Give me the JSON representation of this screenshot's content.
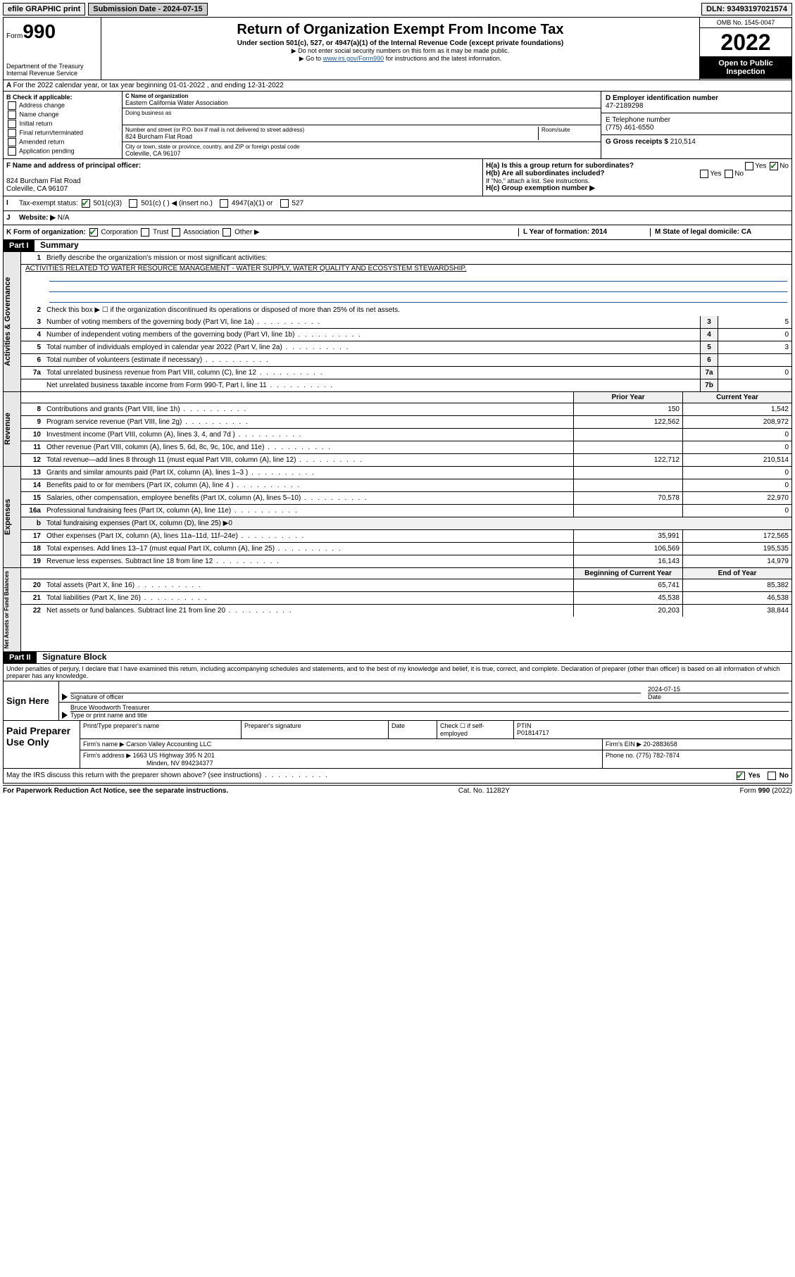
{
  "topbar": {
    "efile": "efile GRAPHIC print",
    "submission": "Submission Date - 2024-07-15",
    "dln": "DLN: 93493197021574"
  },
  "hdr": {
    "form": "Form",
    "num": "990",
    "dept": "Department of the Treasury",
    "irs": "Internal Revenue Service",
    "title": "Return of Organization Exempt From Income Tax",
    "sub1": "Under section 501(c), 527, or 4947(a)(1) of the Internal Revenue Code (except private foundations)",
    "sub2": "▶ Do not enter social security numbers on this form as it may be made public.",
    "sub3a": "▶ Go to ",
    "link": "www.irs.gov/Form990",
    "sub3b": " for instructions and the latest information.",
    "omb": "OMB No. 1545-0047",
    "year": "2022",
    "open": "Open to Public Inspection"
  },
  "A": {
    "text": "For the 2022 calendar year, or tax year beginning 01-01-2022    , and ending 12-31-2022"
  },
  "B": {
    "hdr": "B Check if applicable:",
    "items": [
      "Address change",
      "Name change",
      "Initial return",
      "Final return/terminated",
      "Amended return",
      "Application pending"
    ]
  },
  "C": {
    "lbl": "C Name of organization",
    "org": "Eastern California Water Association",
    "dba": "Doing business as",
    "addr_lbl": "Number and street (or P.O. box if mail is not delivered to street address)",
    "room": "Room/suite",
    "addr": "824 Burcham Flat Road",
    "city_lbl": "City or town, state or province, country, and ZIP or foreign postal code",
    "city": "Coleville, CA  96107"
  },
  "D": {
    "lbl": "D Employer identification number",
    "val": "47-2189298"
  },
  "E": {
    "lbl": "E Telephone number",
    "val": "(775) 461-6550"
  },
  "G": {
    "lbl": "G Gross receipts $",
    "val": "210,514"
  },
  "F": {
    "lbl": "F  Name and address of principal officer:",
    "addr1": "824 Burcham Flat Road",
    "addr2": "Coleville, CA  96107"
  },
  "H": {
    "a": "H(a)  Is this a group return for subordinates?",
    "b": "H(b)  Are all subordinates included?",
    "note": "If \"No,\" attach a list. See instructions.",
    "c": "H(c)  Group exemption number ▶",
    "yes": "Yes",
    "no": "No"
  },
  "I": {
    "lbl": "Tax-exempt status:",
    "c1": "501(c)(3)",
    "c2": "501(c) (  ) ◀ (insert no.)",
    "c3": "4947(a)(1) or",
    "c4": "527"
  },
  "J": {
    "lbl": "Website: ▶",
    "val": "N/A"
  },
  "K": {
    "lbl": "K Form of organization:",
    "c1": "Corporation",
    "c2": "Trust",
    "c3": "Association",
    "c4": "Other ▶"
  },
  "L": {
    "lbl": "L Year of formation: 2014"
  },
  "M": {
    "lbl": "M State of legal domicile: CA"
  },
  "part1": {
    "hdr": "Part I",
    "title": "Summary"
  },
  "p1": {
    "l1a": "Briefly describe the organization's mission or most significant activities:",
    "l1b": "ACTIVITIES RELATED TO WATER RESOURCE MANAGEMENT - WATER SUPPLY, WATER QUALITY AND ECOSYSTEM STEWARDSHIP.",
    "l2": "Check this box ▶ ☐  if the organization discontinued its operations or disposed of more than 25% of its net assets.",
    "rows_ag": [
      {
        "n": "3",
        "d": "Number of voting members of the governing body (Part VI, line 1a)",
        "b": "3",
        "v": "5"
      },
      {
        "n": "4",
        "d": "Number of independent voting members of the governing body (Part VI, line 1b)",
        "b": "4",
        "v": "0"
      },
      {
        "n": "5",
        "d": "Total number of individuals employed in calendar year 2022 (Part V, line 2a)",
        "b": "5",
        "v": "3"
      },
      {
        "n": "6",
        "d": "Total number of volunteers (estimate if necessary)",
        "b": "6",
        "v": ""
      },
      {
        "n": "7a",
        "d": "Total unrelated business revenue from Part VIII, column (C), line 12",
        "b": "7a",
        "v": "0"
      },
      {
        "n": "",
        "d": "Net unrelated business taxable income from Form 990-T, Part I, line 11",
        "b": "7b",
        "v": ""
      }
    ],
    "py": "Prior Year",
    "cy": "Current Year",
    "rev": [
      {
        "n": "8",
        "d": "Contributions and grants (Part VIII, line 1h)",
        "p": "150",
        "c": "1,542"
      },
      {
        "n": "9",
        "d": "Program service revenue (Part VIII, line 2g)",
        "p": "122,562",
        "c": "208,972"
      },
      {
        "n": "10",
        "d": "Investment income (Part VIII, column (A), lines 3, 4, and 7d )",
        "p": "",
        "c": "0"
      },
      {
        "n": "11",
        "d": "Other revenue (Part VIII, column (A), lines 5, 6d, 8c, 9c, 10c, and 11e)",
        "p": "",
        "c": "0"
      },
      {
        "n": "12",
        "d": "Total revenue—add lines 8 through 11 (must equal Part VIII, column (A), line 12)",
        "p": "122,712",
        "c": "210,514"
      }
    ],
    "exp": [
      {
        "n": "13",
        "d": "Grants and similar amounts paid (Part IX, column (A), lines 1–3 )",
        "p": "",
        "c": "0"
      },
      {
        "n": "14",
        "d": "Benefits paid to or for members (Part IX, column (A), line 4 )",
        "p": "",
        "c": "0"
      },
      {
        "n": "15",
        "d": "Salaries, other compensation, employee benefits (Part IX, column (A), lines 5–10)",
        "p": "70,578",
        "c": "22,970"
      },
      {
        "n": "16a",
        "d": "Professional fundraising fees (Part IX, column (A), line 11e)",
        "p": "",
        "c": "0"
      },
      {
        "n": "b",
        "d": "Total fundraising expenses (Part IX, column (D), line 25) ▶0",
        "p": null,
        "c": null
      },
      {
        "n": "17",
        "d": "Other expenses (Part IX, column (A), lines 11a–11d, 11f–24e)",
        "p": "35,991",
        "c": "172,565"
      },
      {
        "n": "18",
        "d": "Total expenses. Add lines 13–17 (must equal Part IX, column (A), line 25)",
        "p": "106,569",
        "c": "195,535"
      },
      {
        "n": "19",
        "d": "Revenue less expenses. Subtract line 18 from line 12",
        "p": "16,143",
        "c": "14,979"
      }
    ],
    "boy": "Beginning of Current Year",
    "eoy": "End of Year",
    "na": [
      {
        "n": "20",
        "d": "Total assets (Part X, line 16)",
        "p": "65,741",
        "c": "85,382"
      },
      {
        "n": "21",
        "d": "Total liabilities (Part X, line 26)",
        "p": "45,538",
        "c": "46,538"
      },
      {
        "n": "22",
        "d": "Net assets or fund balances. Subtract line 21 from line 20",
        "p": "20,203",
        "c": "38,844"
      }
    ],
    "vtabs": {
      "ag": "Activities & Governance",
      "rev": "Revenue",
      "exp": "Expenses",
      "na": "Net Assets or Fund Balances"
    }
  },
  "part2": {
    "hdr": "Part II",
    "title": "Signature Block",
    "decl": "Under penalties of perjury, I declare that I have examined this return, including accompanying schedules and statements, and to the best of my knowledge and belief, it is true, correct, and complete. Declaration of preparer (other than officer) is based on all information of which preparer has any knowledge."
  },
  "sign": {
    "here": "Sign Here",
    "sig": "Signature of officer",
    "date_lbl": "Date",
    "date": "2024-07-15",
    "name": "Bruce Woodworth Treasurer",
    "name_lbl": "Type or print name and title"
  },
  "prep": {
    "title": "Paid Preparer Use Only",
    "h1": "Print/Type preparer's name",
    "h2": "Preparer's signature",
    "h3": "Date",
    "h4": "Check ☐ if self-employed",
    "h5": "PTIN",
    "ptin": "P01814717",
    "firm_lbl": "Firm's name   ▶",
    "firm": "Carson Valley Accounting LLC",
    "ein_lbl": "Firm's EIN ▶",
    "ein": "20-2883658",
    "addr_lbl": "Firm's address ▶",
    "addr1": "1663 US Highway 395 N 201",
    "addr2": "Minden, NV  894234377",
    "ph_lbl": "Phone no.",
    "ph": "(775) 782-7874",
    "may": "May the IRS discuss this return with the preparer shown above? (see instructions)",
    "yes": "Yes",
    "no": "No"
  },
  "footer": {
    "l": "For Paperwork Reduction Act Notice, see the separate instructions.",
    "c": "Cat. No. 11282Y",
    "r": "Form 990 (2022)"
  }
}
